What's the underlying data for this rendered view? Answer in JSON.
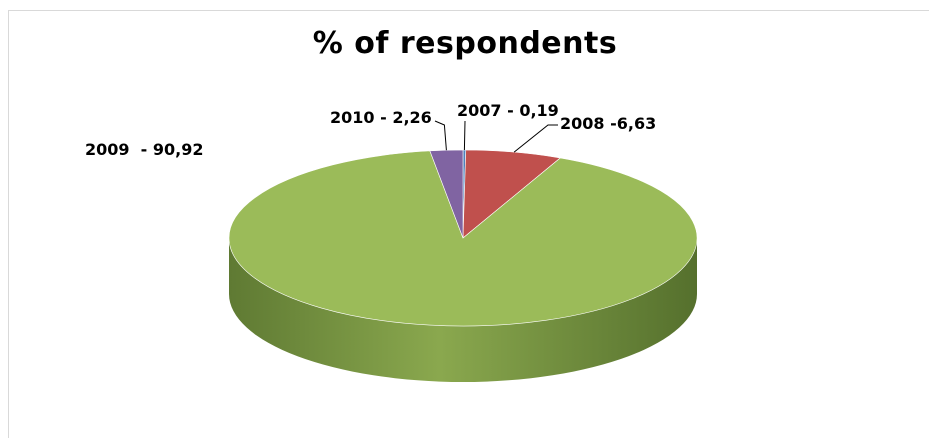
{
  "chart_data": {
    "type": "pie",
    "title": "% of respondents",
    "categories": [
      "2007",
      "2008",
      "2009",
      "2010"
    ],
    "values": [
      0.19,
      6.63,
      90.92,
      2.26
    ],
    "data_labels": [
      "2007 - 0,19",
      "2008 -6,63",
      "2009  - 90,92",
      "2010 - 2,26"
    ],
    "colors": [
      "#4f81bd",
      "#c0504d",
      "#9bbb59",
      "#8064a2"
    ],
    "side_colors": [
      "#3a6190",
      "#8f3b39",
      "#6f8a3e",
      "#5e4a78"
    ],
    "legend": "none",
    "three_d": true
  }
}
